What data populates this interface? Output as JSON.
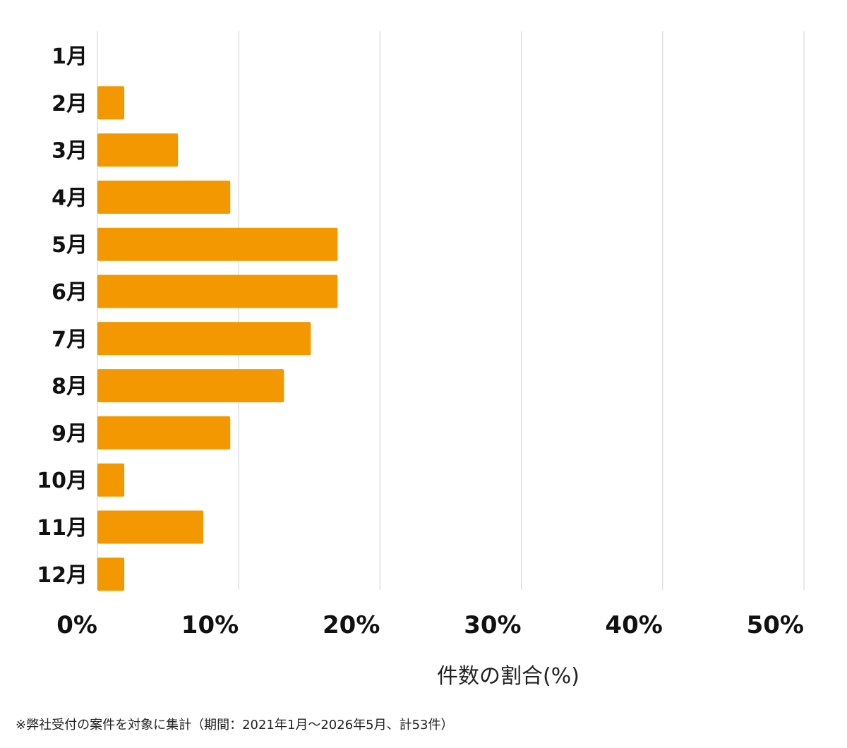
{
  "chart_data": {
    "type": "bar",
    "orientation": "horizontal",
    "categories": [
      "1月",
      "2月",
      "3月",
      "4月",
      "5月",
      "6月",
      "7月",
      "8月",
      "9月",
      "10月",
      "11月",
      "12月"
    ],
    "values": [
      0,
      1.9,
      5.7,
      9.4,
      17.0,
      17.0,
      15.1,
      13.2,
      9.4,
      1.9,
      7.5,
      1.9
    ],
    "xticks": [
      "0%",
      "10%",
      "20%",
      "30%",
      "40%",
      "50%"
    ],
    "xlim": [
      0,
      50
    ],
    "xlabel": "件数の割合(%)",
    "grid": true,
    "bar_color": "#f39800",
    "gridline_color": "#d9d9d9"
  },
  "footnote": "※弊社受付の案件を対象に集計（期間：2021年1月～2026年5月、計53件）"
}
